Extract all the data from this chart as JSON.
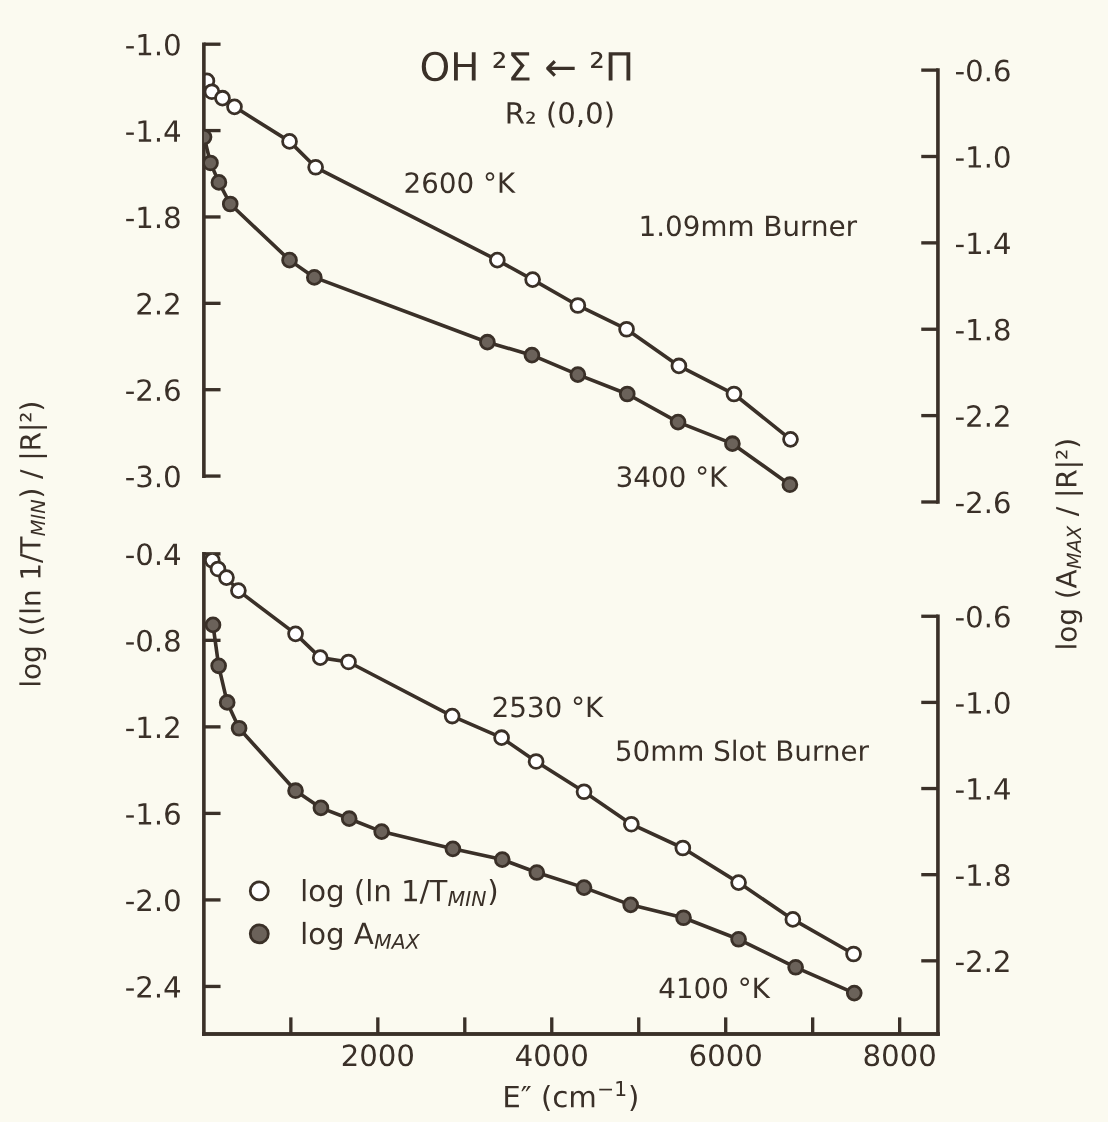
{
  "chart_data": [
    {
      "type": "line",
      "title": "OH ²Σ ← ²Π",
      "subtitle": "R₂ (0,0)",
      "ylabel": "log ((ln 1/T$_{MIN}$) / |R|²)",
      "y2label": "log (A$_{MAX}$ / |R|²)",
      "annotations": [
        "2600 °K",
        "3400 °K",
        "1.09mm Burner"
      ],
      "marker": "circle",
      "tick_labels": "y",
      "xlim": [
        0,
        8440
      ],
      "ylim": [
        -3.12,
        -1.0
      ],
      "yticks": [
        {
          "value": -1.0,
          "label": "-1.0"
        },
        -1.4,
        -1.8,
        {
          "value": -2.2,
          "label": "2.2"
        },
        -2.6,
        {
          "value": -3.0,
          "label": "-3.0"
        }
      ],
      "y2lim": [
        -2.6,
        -0.48
      ],
      "y2ticks": [
        -0.6,
        {
          "value": -1.0,
          "label": "-1.0"
        },
        -1.4,
        -1.8,
        -2.2,
        -2.6
      ],
      "series": [
        {
          "color": "#3a3028",
          "x": [
            35,
            92,
            214,
            352,
            985,
            1285,
            3374,
            3780,
            4300,
            4860,
            5462,
            6095,
            6745
          ],
          "values": [
            -1.17,
            -1.22,
            -1.25,
            -1.29,
            -1.45,
            -1.57,
            -2.0,
            -2.09,
            -2.21,
            -2.32,
            -2.49,
            -2.62,
            -2.83
          ]
        },
        {
          "color": "#6b625a",
          "axis": "y2",
          "x": [
            2,
            76,
            173,
            303,
            985,
            1270,
            3260,
            3772,
            4300,
            4868,
            5452,
            6077,
            6738
          ],
          "values": [
            -0.91,
            -1.03,
            -1.12,
            -1.22,
            -1.48,
            -1.56,
            -1.86,
            -1.92,
            -2.01,
            -2.1,
            -2.23,
            -2.33,
            -2.52
          ]
        }
      ]
    },
    {
      "type": "line",
      "xlabel": "E″ (cm$^{−1}$)",
      "annotations": [
        "2530 °K",
        "4100 °K",
        "50mm Slot Burner"
      ],
      "marker": "circle",
      "legend": "bottom left",
      "xlim": [
        0,
        8440
      ],
      "xticks": [
        {
          "value": 1000,
          "label": null
        },
        2000,
        {
          "value": 3000,
          "label": null
        },
        4000,
        {
          "value": 5000,
          "label": null
        },
        6000,
        {
          "value": 7000,
          "label": null
        },
        8000
      ],
      "ylim": [
        -2.62,
        -0.4
      ],
      "yticks": [
        -0.4,
        -0.8,
        -1.2,
        -1.6,
        {
          "value": -2.0,
          "label": "-2.0"
        },
        -2.4
      ],
      "y2lim": [
        -2.54,
        -0.31
      ],
      "y2ticks": [
        -0.6,
        {
          "value": -1.0,
          "label": "-1.0"
        },
        -1.4,
        -1.8,
        -2.2
      ],
      "series": [
        {
          "name": "log (ln 1/T$_{MIN}$)",
          "color": "#3a3028",
          "x": [
            97,
            162,
            260,
            397,
            1054,
            1338,
            1663,
            2855,
            3423,
            3820,
            4371,
            4915,
            5507,
            6148,
            6772,
            7470
          ],
          "values": [
            -0.43,
            -0.47,
            -0.51,
            -0.57,
            -0.77,
            -0.88,
            -0.9,
            -1.15,
            -1.25,
            -1.36,
            -1.5,
            -1.65,
            -1.76,
            -1.92,
            -2.09,
            -2.25
          ]
        },
        {
          "name": "log A$_{MAX}$",
          "color": "#6b625a",
          "axis": "y2",
          "x": [
            105,
            170,
            268,
            405,
            1054,
            1346,
            1671,
            2044,
            2863,
            3431,
            3828,
            4371,
            4907,
            5515,
            6148,
            6804,
            7478
          ],
          "values": [
            -0.64,
            -0.83,
            -1.0,
            -1.12,
            -1.41,
            -1.49,
            -1.54,
            -1.6,
            -1.68,
            -1.73,
            -1.79,
            -1.86,
            -1.94,
            -2.0,
            -2.1,
            -2.23,
            -2.35
          ]
        }
      ]
    }
  ]
}
